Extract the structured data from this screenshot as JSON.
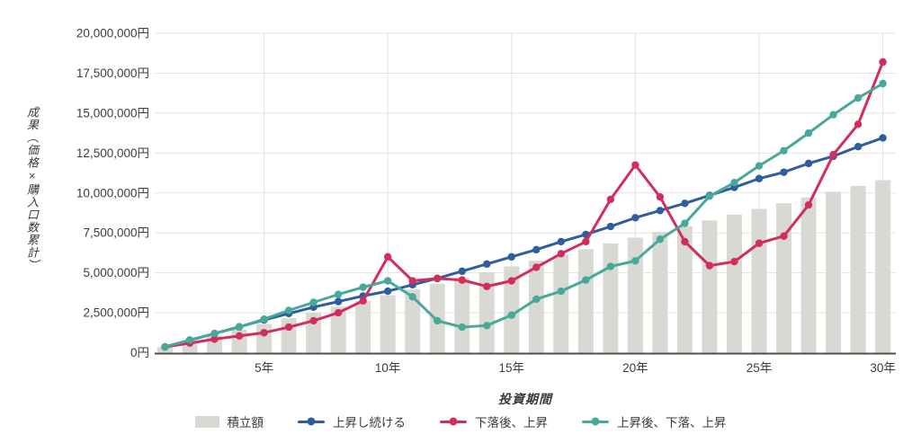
{
  "chart_data": {
    "type": "bar+line",
    "title": "",
    "xlabel": "投資期間",
    "ylabel": "成果（価格×購入口数累計）",
    "ylim": [
      0,
      20000000
    ],
    "grid": true,
    "legend_position": "bottom",
    "x_years": [
      1,
      2,
      3,
      4,
      5,
      6,
      7,
      8,
      9,
      10,
      11,
      12,
      13,
      14,
      15,
      16,
      17,
      18,
      19,
      20,
      21,
      22,
      23,
      24,
      25,
      26,
      27,
      28,
      29,
      30
    ],
    "x_ticks": [
      {
        "year": 5,
        "label": "5年"
      },
      {
        "year": 10,
        "label": "10年"
      },
      {
        "year": 15,
        "label": "15年"
      },
      {
        "year": 20,
        "label": "20年"
      },
      {
        "year": 25,
        "label": "25年"
      },
      {
        "year": 30,
        "label": "30年"
      }
    ],
    "y_ticks": [
      {
        "value": 0,
        "label": "0円"
      },
      {
        "value": 2500000,
        "label": "2,500,000円"
      },
      {
        "value": 5000000,
        "label": "5,000,000円"
      },
      {
        "value": 7500000,
        "label": "7,500,000円"
      },
      {
        "value": 10000000,
        "label": "10,000,000円"
      },
      {
        "value": 12500000,
        "label": "12,500,000円"
      },
      {
        "value": 15000000,
        "label": "15,000,000円"
      },
      {
        "value": 17500000,
        "label": "17,500,000円"
      },
      {
        "value": 20000000,
        "label": "20,000,000円"
      }
    ],
    "bar_series": {
      "name": "積立額",
      "color": "#d9d9d4",
      "values": [
        360000,
        720000,
        1080000,
        1440000,
        1800000,
        2160000,
        2520000,
        2880000,
        3240000,
        3600000,
        3960000,
        4320000,
        4680000,
        5040000,
        5400000,
        5760000,
        6120000,
        6480000,
        6840000,
        7200000,
        7560000,
        7920000,
        8280000,
        8640000,
        9000000,
        9360000,
        9720000,
        10080000,
        10440000,
        10800000
      ]
    },
    "line_series": [
      {
        "name": "上昇し続ける",
        "color": "#2e5f9c",
        "values": [
          370000,
          780000,
          1200000,
          1620000,
          2050000,
          2450000,
          2850000,
          3200000,
          3550000,
          3850000,
          4250000,
          4650000,
          5100000,
          5550000,
          6000000,
          6450000,
          6950000,
          7400000,
          7900000,
          8450000,
          8900000,
          9350000,
          9850000,
          10350000,
          10900000,
          11300000,
          11850000,
          12300000,
          12900000,
          13450000
        ]
      },
      {
        "name": "下落後、上昇",
        "color": "#d22e5d",
        "values": [
          360000,
          600000,
          850000,
          1050000,
          1250000,
          1600000,
          2000000,
          2500000,
          3250000,
          6000000,
          4500000,
          4650000,
          4550000,
          4150000,
          4500000,
          5350000,
          6200000,
          6950000,
          9600000,
          11750000,
          9750000,
          6950000,
          5450000,
          5700000,
          6850000,
          7300000,
          9250000,
          12400000,
          14300000,
          18200000
        ]
      },
      {
        "name": "上昇後、下落、上昇",
        "color": "#48a89a",
        "values": [
          360000,
          800000,
          1200000,
          1600000,
          2100000,
          2650000,
          3150000,
          3650000,
          4100000,
          4500000,
          3500000,
          2000000,
          1600000,
          1700000,
          2350000,
          3350000,
          3850000,
          4550000,
          5400000,
          5750000,
          7100000,
          8100000,
          9800000,
          10650000,
          11700000,
          12650000,
          13750000,
          14900000,
          15950000,
          16850000
        ]
      }
    ],
    "style": {
      "grid_color": "#e3e3e3",
      "axis_color": "#4f4f4f",
      "tick_text_color": "#3d3d3d"
    }
  }
}
